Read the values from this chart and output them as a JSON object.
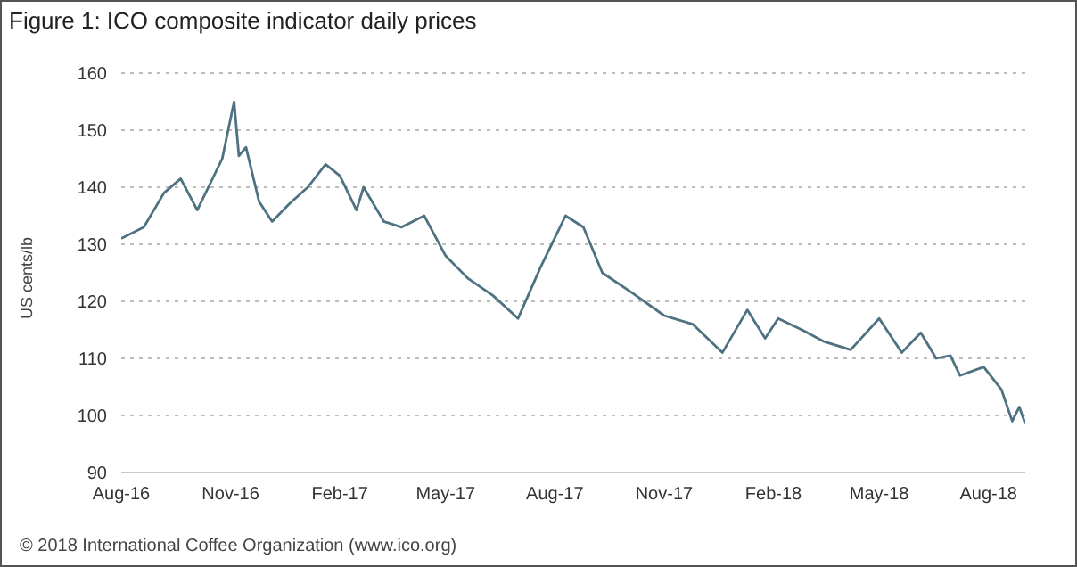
{
  "chart_data": {
    "type": "line",
    "title": "Figure 1: ICO composite indicator daily prices",
    "ylabel": "US cents/lb",
    "annotations": [
      "© 2018 International Coffee Organization (www.ico.org)"
    ],
    "series": [
      {
        "color": "#4e7282",
        "x": [
          "2016-08-01",
          "2016-08-20",
          "2016-09-06",
          "2016-09-20",
          "2016-10-04",
          "2016-10-25",
          "2016-11-04",
          "2016-11-08",
          "2016-11-14",
          "2016-11-25",
          "2016-12-06",
          "2016-12-20",
          "2017-01-05",
          "2017-01-20",
          "2017-02-01",
          "2017-02-15",
          "2017-02-21",
          "2017-03-10",
          "2017-03-25",
          "2017-04-13",
          "2017-05-01",
          "2017-05-20",
          "2017-06-10",
          "2017-07-01",
          "2017-07-20",
          "2017-08-10",
          "2017-08-25",
          "2017-09-10",
          "2017-10-05",
          "2017-11-01",
          "2017-11-25",
          "2017-12-20",
          "2018-01-10",
          "2018-01-25",
          "2018-02-05",
          "2018-02-25",
          "2018-03-15",
          "2018-04-07",
          "2018-05-01",
          "2018-05-20",
          "2018-06-05",
          "2018-06-18",
          "2018-06-30",
          "2018-07-08",
          "2018-07-28",
          "2018-08-12",
          "2018-08-21",
          "2018-08-27",
          "2018-09-01"
        ],
        "values": [
          131,
          133,
          139,
          141.5,
          136,
          145,
          155,
          145.5,
          147,
          137.5,
          134,
          137,
          140,
          144,
          142,
          136,
          140,
          134,
          133,
          135,
          128,
          124,
          121,
          117,
          126,
          135,
          133,
          125,
          121.5,
          117.5,
          116,
          111,
          118.5,
          113.5,
          117,
          115,
          113,
          111.5,
          117,
          111,
          114.5,
          110,
          110.5,
          107,
          108.5,
          104.5,
          99,
          101.5,
          98.5
        ]
      }
    ],
    "xlim": [
      "2016-08-01",
      "2018-09-01"
    ],
    "xticks": [
      {
        "value": "2016-08-01",
        "label": "Aug-16"
      },
      {
        "value": "2016-11-01",
        "label": "Nov-16"
      },
      {
        "value": "2017-02-01",
        "label": "Feb-17"
      },
      {
        "value": "2017-05-01",
        "label": "May-17"
      },
      {
        "value": "2017-08-01",
        "label": "Aug-17"
      },
      {
        "value": "2017-11-01",
        "label": "Nov-17"
      },
      {
        "value": "2018-02-01",
        "label": "Feb-18"
      },
      {
        "value": "2018-05-01",
        "label": "May-18"
      },
      {
        "value": "2018-08-01",
        "label": "Aug-18"
      }
    ],
    "ylim": [
      90,
      160
    ],
    "yticks": [
      90,
      100,
      110,
      120,
      130,
      140,
      150,
      160
    ],
    "grid": "y",
    "legend": false,
    "marker": "none",
    "line_style": "solid"
  }
}
